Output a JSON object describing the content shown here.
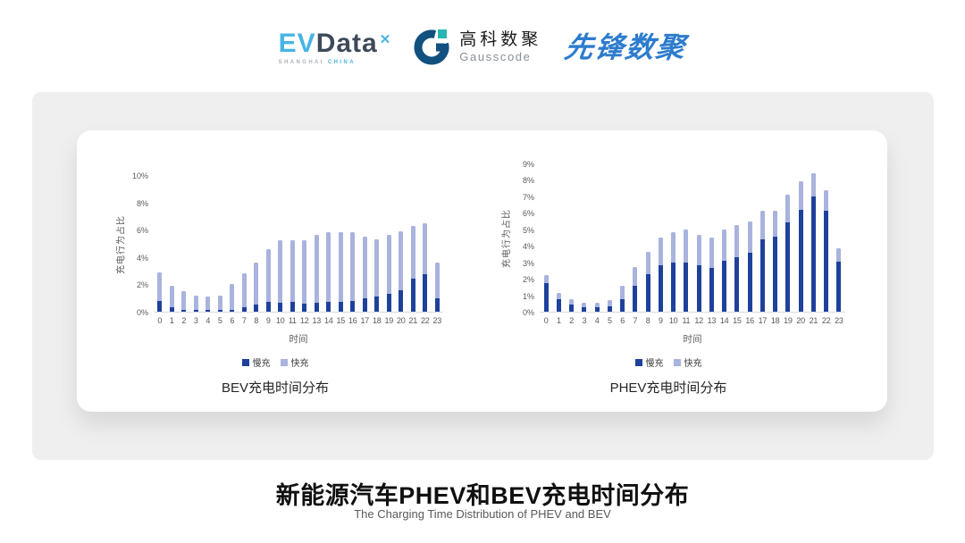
{
  "colors": {
    "slow": "#1e419b",
    "fast": "#a9b3de",
    "panel": "#efefef",
    "axis_line": "#d9d9d9",
    "axis_text": "#595959"
  },
  "header": {
    "evdata": {
      "part1": "EV",
      "part2": "Data",
      "mark": "✕",
      "sub1": "SHANGHAI",
      "sub2": "CHINA"
    },
    "gausscode": {
      "name_cn": "高科数聚",
      "name_en": "Gausscode"
    },
    "pioneer": {
      "text": "先锋数聚"
    }
  },
  "chart_data": [
    {
      "type": "bar",
      "stacked": true,
      "title": "BEV充电时间分布",
      "xlabel": "时间",
      "ylabel": "充电行为占比",
      "ymax": 10,
      "ystep": 2,
      "ytick_suffix": "%",
      "grid": false,
      "legend_position": "bottom",
      "categories": [
        "0",
        "1",
        "2",
        "3",
        "4",
        "5",
        "6",
        "7",
        "8",
        "9",
        "10",
        "11",
        "12",
        "13",
        "14",
        "15",
        "16",
        "17",
        "18",
        "19",
        "20",
        "21",
        "22",
        "23"
      ],
      "series": [
        {
          "name": "慢充",
          "color": "#1e419b",
          "values": [
            0.8,
            0.35,
            0.15,
            0.1,
            0.1,
            0.1,
            0.15,
            0.35,
            0.5,
            0.7,
            0.65,
            0.7,
            0.6,
            0.65,
            0.7,
            0.7,
            0.8,
            1.0,
            1.1,
            1.3,
            1.6,
            2.4,
            2.75,
            1.0
          ]
        },
        {
          "name": "快充",
          "color": "#a9b3de",
          "values": [
            2.1,
            1.55,
            1.35,
            1.1,
            1.0,
            1.1,
            1.85,
            2.45,
            3.1,
            3.9,
            4.55,
            4.5,
            4.6,
            4.95,
            5.1,
            5.1,
            5.0,
            4.5,
            4.2,
            4.3,
            4.3,
            3.9,
            3.75,
            2.6
          ]
        }
      ]
    },
    {
      "type": "bar",
      "stacked": true,
      "title": "PHEV充电时间分布",
      "xlabel": "时间",
      "ylabel": "充电行为占比",
      "ymax": 9,
      "ystep": 1,
      "ytick_suffix": "%",
      "grid": false,
      "legend_position": "bottom",
      "categories": [
        "0",
        "1",
        "2",
        "3",
        "4",
        "5",
        "6",
        "7",
        "8",
        "9",
        "10",
        "11",
        "12",
        "13",
        "14",
        "15",
        "16",
        "17",
        "18",
        "19",
        "20",
        "21",
        "22",
        "23"
      ],
      "series": [
        {
          "name": "慢充",
          "color": "#1e419b",
          "values": [
            1.75,
            0.75,
            0.45,
            0.25,
            0.25,
            0.3,
            0.75,
            1.6,
            2.3,
            2.8,
            3.0,
            3.0,
            2.8,
            2.65,
            3.1,
            3.3,
            3.6,
            4.4,
            4.55,
            5.4,
            6.2,
            7.0,
            6.15,
            3.05
          ]
        },
        {
          "name": "快充",
          "color": "#a9b3de",
          "values": [
            0.45,
            0.4,
            0.3,
            0.3,
            0.3,
            0.4,
            0.85,
            1.1,
            1.35,
            1.7,
            1.8,
            2.0,
            1.85,
            1.85,
            1.9,
            1.95,
            1.9,
            1.75,
            1.6,
            1.7,
            1.7,
            1.4,
            1.2,
            0.8
          ]
        }
      ]
    }
  ],
  "footer": {
    "title": "新能源汽车PHEV和BEV充电时间分布",
    "subtitle": "The Charging Time Distribution of PHEV and BEV"
  }
}
